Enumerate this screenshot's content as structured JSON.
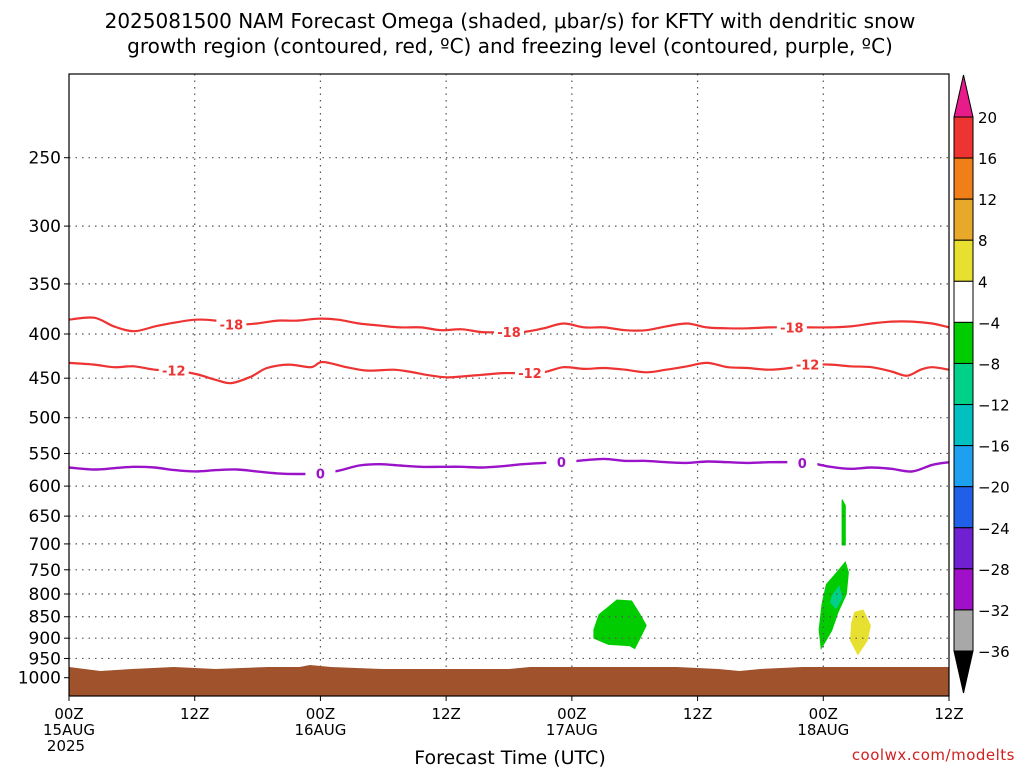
{
  "title_line1": "2025081500 NAM Forecast Omega (shaded, μbar/s) for KFTY with dendritic snow",
  "title_line2": "growth region (contoured, red, ºC) and freezing level (contoured, purple, ºC)",
  "credit": "coolwx.com/modelts",
  "chart_data": {
    "type": "heatmap",
    "xlabel": "Forecast Time (UTC)",
    "x_range_hours": [
      0,
      84
    ],
    "y_scale": "log-pressure",
    "y_range_hpa": [
      200,
      1050
    ],
    "ylabel": "",
    "grid": true,
    "x_ticks": [
      {
        "h": 0,
        "l1": "00Z",
        "l2": "15AUG",
        "l3": "2025"
      },
      {
        "h": 12,
        "l1": "12Z",
        "l2": "",
        "l3": ""
      },
      {
        "h": 24,
        "l1": "00Z",
        "l2": "16AUG",
        "l3": ""
      },
      {
        "h": 36,
        "l1": "12Z",
        "l2": "",
        "l3": ""
      },
      {
        "h": 48,
        "l1": "00Z",
        "l2": "17AUG",
        "l3": ""
      },
      {
        "h": 60,
        "l1": "12Z",
        "l2": "",
        "l3": ""
      },
      {
        "h": 72,
        "l1": "00Z",
        "l2": "18AUG",
        "l3": ""
      },
      {
        "h": 84,
        "l1": "12Z",
        "l2": "",
        "l3": ""
      }
    ],
    "y_ticks": [
      250,
      300,
      350,
      400,
      450,
      500,
      550,
      600,
      650,
      700,
      750,
      800,
      850,
      900,
      950,
      1000
    ],
    "contours": [
      {
        "name": "-18",
        "label": "-18",
        "color": "#ee3333",
        "stroke_width": 2.2,
        "label_at_hours": [
          15.5,
          42,
          69
        ],
        "points": [
          [
            0,
            385
          ],
          [
            2.4,
            383
          ],
          [
            4.3,
            392
          ],
          [
            6.2,
            397
          ],
          [
            8.2,
            392
          ],
          [
            10.1,
            388
          ],
          [
            12.1,
            385
          ],
          [
            14,
            386
          ],
          [
            16,
            390
          ],
          [
            17.9,
            389
          ],
          [
            19.9,
            386
          ],
          [
            21.8,
            386
          ],
          [
            23.8,
            384
          ],
          [
            25.7,
            385
          ],
          [
            27.7,
            389
          ],
          [
            29.6,
            391
          ],
          [
            31.6,
            393
          ],
          [
            33.6,
            393
          ],
          [
            35.5,
            396
          ],
          [
            37.5,
            395
          ],
          [
            39.4,
            398
          ],
          [
            41.4,
            398
          ],
          [
            43.3,
            398
          ],
          [
            45.3,
            394
          ],
          [
            47.2,
            389
          ],
          [
            49.2,
            393
          ],
          [
            51.1,
            393
          ],
          [
            53.1,
            396
          ],
          [
            55.1,
            396
          ],
          [
            57,
            392
          ],
          [
            59,
            389
          ],
          [
            60.9,
            393
          ],
          [
            62.9,
            394
          ],
          [
            64.8,
            394
          ],
          [
            66.8,
            393
          ],
          [
            68.8,
            393
          ],
          [
            70.7,
            393
          ],
          [
            72.7,
            393
          ],
          [
            74.6,
            392
          ],
          [
            76.6,
            389
          ],
          [
            78.5,
            387
          ],
          [
            80.5,
            387
          ],
          [
            82.4,
            389
          ],
          [
            84,
            393
          ]
        ]
      },
      {
        "name": "-12",
        "label": "-12",
        "color": "#ee3333",
        "stroke_width": 2.2,
        "label_at_hours": [
          10,
          44,
          70.5
        ],
        "points": [
          [
            0,
            432
          ],
          [
            2.4,
            434
          ],
          [
            4.3,
            437
          ],
          [
            6.2,
            436
          ],
          [
            8.2,
            440
          ],
          [
            10.1,
            441
          ],
          [
            12.1,
            445
          ],
          [
            14,
            452
          ],
          [
            15.5,
            456
          ],
          [
            17.4,
            448
          ],
          [
            18.9,
            438
          ],
          [
            21,
            434
          ],
          [
            23.1,
            437
          ],
          [
            24.2,
            431
          ],
          [
            26.5,
            437
          ],
          [
            28.5,
            441
          ],
          [
            30.9,
            440
          ],
          [
            32.4,
            442
          ],
          [
            34.1,
            446
          ],
          [
            36,
            449
          ],
          [
            37.5,
            448
          ],
          [
            39.4,
            446
          ],
          [
            41.4,
            444
          ],
          [
            43.3,
            444
          ],
          [
            45.3,
            443
          ],
          [
            47.2,
            437
          ],
          [
            49.2,
            439
          ],
          [
            51.1,
            438
          ],
          [
            53.1,
            440
          ],
          [
            55.1,
            443
          ],
          [
            57,
            440
          ],
          [
            59,
            436
          ],
          [
            60.9,
            432
          ],
          [
            62.9,
            437
          ],
          [
            64.8,
            438
          ],
          [
            66.8,
            440
          ],
          [
            68.8,
            438
          ],
          [
            70.7,
            434
          ],
          [
            72.7,
            434
          ],
          [
            74.6,
            436
          ],
          [
            76.6,
            437
          ],
          [
            78.5,
            442
          ],
          [
            80,
            447
          ],
          [
            81.3,
            440
          ],
          [
            82.4,
            437
          ],
          [
            84,
            440
          ]
        ]
      },
      {
        "name": "0",
        "label": "0",
        "color": "#9a13c8",
        "stroke_width": 2.4,
        "label_at_hours": [
          24,
          47,
          70
        ],
        "points": [
          [
            0,
            571
          ],
          [
            2.4,
            574
          ],
          [
            4.3,
            572
          ],
          [
            6.2,
            570
          ],
          [
            8.2,
            571
          ],
          [
            10.1,
            575
          ],
          [
            12.1,
            577
          ],
          [
            14,
            575
          ],
          [
            16,
            574
          ],
          [
            17.9,
            577
          ],
          [
            19.9,
            580
          ],
          [
            21.8,
            581
          ],
          [
            23.8,
            580
          ],
          [
            25.7,
            576
          ],
          [
            27.7,
            568
          ],
          [
            29.6,
            566
          ],
          [
            31.6,
            568
          ],
          [
            33.6,
            570
          ],
          [
            35.5,
            570
          ],
          [
            37.5,
            570
          ],
          [
            39.4,
            571
          ],
          [
            41.4,
            569
          ],
          [
            43.3,
            566
          ],
          [
            45.3,
            564
          ],
          [
            47.2,
            563
          ],
          [
            49.2,
            560
          ],
          [
            51.1,
            558
          ],
          [
            53.1,
            561
          ],
          [
            55.1,
            561
          ],
          [
            57,
            563
          ],
          [
            59,
            564
          ],
          [
            60.9,
            562
          ],
          [
            62.9,
            563
          ],
          [
            64.8,
            564
          ],
          [
            66.8,
            563
          ],
          [
            68.8,
            563
          ],
          [
            70.7,
            564
          ],
          [
            72.7,
            570
          ],
          [
            74.6,
            573
          ],
          [
            76.6,
            571
          ],
          [
            78.5,
            573
          ],
          [
            80.5,
            577
          ],
          [
            82.4,
            567
          ],
          [
            84,
            563
          ]
        ]
      }
    ],
    "shaded": [
      {
        "value_range": [
          -8,
          -4
        ],
        "color": "#00cc00",
        "points": [
          [
            50.1,
            900
          ],
          [
            50.1,
            880
          ],
          [
            50.6,
            845
          ],
          [
            51.4,
            830
          ],
          [
            52.3,
            813
          ],
          [
            53.7,
            815
          ],
          [
            54.5,
            845
          ],
          [
            55.1,
            870
          ],
          [
            54.5,
            900
          ],
          [
            54,
            925
          ],
          [
            53.5,
            918
          ],
          [
            51.5,
            915
          ]
        ]
      },
      {
        "value_range": [
          -8,
          -4
        ],
        "color": "#00cc00",
        "points": [
          [
            71.9,
            820
          ],
          [
            72.3,
            780
          ],
          [
            73.3,
            755
          ],
          [
            74.1,
            735
          ],
          [
            74.4,
            755
          ],
          [
            74.2,
            800
          ],
          [
            73.4,
            840
          ],
          [
            72.8,
            882
          ],
          [
            71.8,
            925
          ],
          [
            71.6,
            880
          ]
        ]
      },
      {
        "value_range": [
          -12,
          -8
        ],
        "color": "#00d088",
        "points": [
          [
            72.9,
            802
          ],
          [
            73.5,
            784
          ],
          [
            73.8,
            808
          ],
          [
            73.2,
            832
          ],
          [
            72.7,
            818
          ]
        ]
      },
      {
        "value_range": [
          -8,
          -4
        ],
        "color": "#00cc00",
        "points": [
          [
            73.8,
            622
          ],
          [
            74.1,
            632
          ],
          [
            74.1,
            702
          ],
          [
            73.8,
            702
          ]
        ]
      },
      {
        "value_range": [
          4,
          8
        ],
        "color": "#e8e030",
        "points": [
          [
            74.7,
            865
          ],
          [
            75,
            840
          ],
          [
            75.8,
            835
          ],
          [
            76.5,
            870
          ],
          [
            76.2,
            905
          ],
          [
            75.3,
            940
          ],
          [
            74.6,
            905
          ]
        ]
      }
    ],
    "colorbar": {
      "label_min_top": "20",
      "levels": [
        "20",
        "16",
        "12",
        "8",
        "4",
        "-4",
        "-8",
        "-12",
        "-16",
        "-20",
        "-24",
        "-28",
        "-32",
        "-36"
      ],
      "colors": [
        "#e81b8a",
        "#ee3333",
        "#f07f1a",
        "#e8a82a",
        "#e8e030",
        "#ffffff",
        "#00cc00",
        "#00d088",
        "#00c0c0",
        "#1ea0f0",
        "#2060e8",
        "#7020d0",
        "#a010c8",
        "#a8a8a8",
        "#000000"
      ]
    },
    "ground_fill_color": "#a0522d"
  }
}
